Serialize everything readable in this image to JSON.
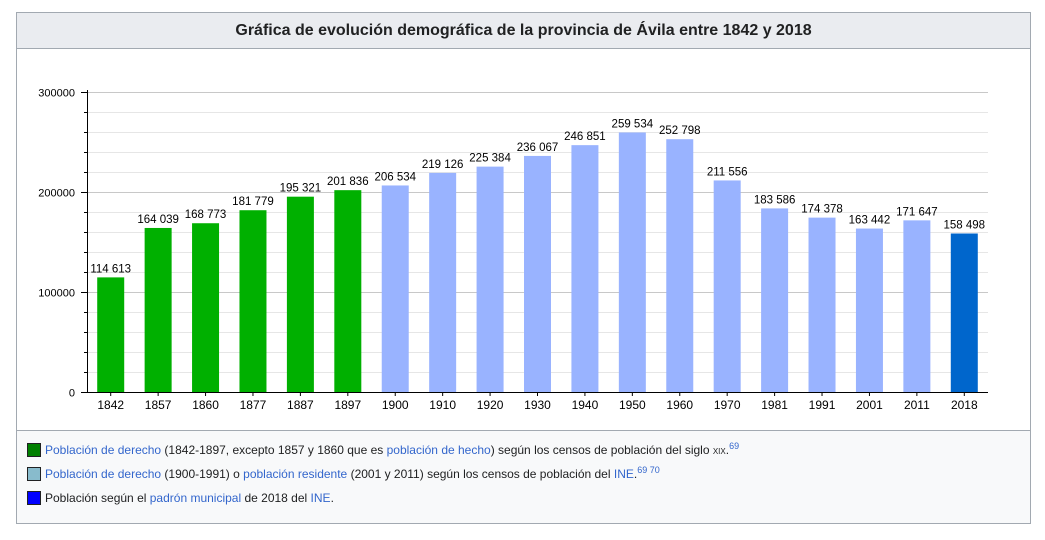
{
  "title": "Gráfica de evolución demográfica de la provincia de Ávila entre 1842 y 2018",
  "chart_data": {
    "type": "bar",
    "categories": [
      "1842",
      "1857",
      "1860",
      "1877",
      "1887",
      "1897",
      "1900",
      "1910",
      "1920",
      "1930",
      "1940",
      "1950",
      "1960",
      "1970",
      "1981",
      "1991",
      "2001",
      "2011",
      "2018"
    ],
    "values": [
      114613,
      164039,
      168773,
      181779,
      195321,
      201836,
      206534,
      219126,
      225384,
      236067,
      246851,
      259534,
      252798,
      211556,
      183586,
      174378,
      163442,
      171647,
      158498
    ],
    "value_labels": [
      "114 613",
      "164 039",
      "168 773",
      "181 779",
      "195 321",
      "201 836",
      "206 534",
      "219 126",
      "225 384",
      "236 067",
      "246 851",
      "259 534",
      "252 798",
      "211 556",
      "183 586",
      "174 378",
      "163 442",
      "171 647",
      "158 498"
    ],
    "bar_colors": [
      "#00b000",
      "#00b000",
      "#00b000",
      "#00b000",
      "#00b000",
      "#00b000",
      "#99b3ff",
      "#99b3ff",
      "#99b3ff",
      "#99b3ff",
      "#99b3ff",
      "#99b3ff",
      "#99b3ff",
      "#99b3ff",
      "#99b3ff",
      "#99b3ff",
      "#99b3ff",
      "#99b3ff",
      "#0066cc"
    ],
    "ylim": [
      0,
      300000
    ],
    "y_ticks": [
      0,
      100000,
      200000,
      300000
    ],
    "y_tick_labels": [
      "0",
      "100000",
      "200000",
      "300000"
    ],
    "grid": true
  },
  "legend": {
    "row1": {
      "color": "#008000",
      "link1": "Población de derecho",
      "text1": " (1842-1897, excepto 1857 y 1860 que es ",
      "link2": "población de hecho",
      "text2": ") según los censos de población del siglo ",
      "siglo": "xix",
      "text3": ".",
      "ref": "69"
    },
    "row2": {
      "color": "#88bbcc",
      "link1": "Población de derecho",
      "text1": " (1900-1991) o ",
      "link2": "población residente",
      "text2": " (2001 y 2011) según los censos de población del ",
      "link3": "INE",
      "text3": ".",
      "ref": "69 70"
    },
    "row3": {
      "color": "#0000ff",
      "text1": "Población según el ",
      "link1": "padrón municipal",
      "text2": " de 2018 del ",
      "link2": "INE",
      "text3": "."
    }
  }
}
